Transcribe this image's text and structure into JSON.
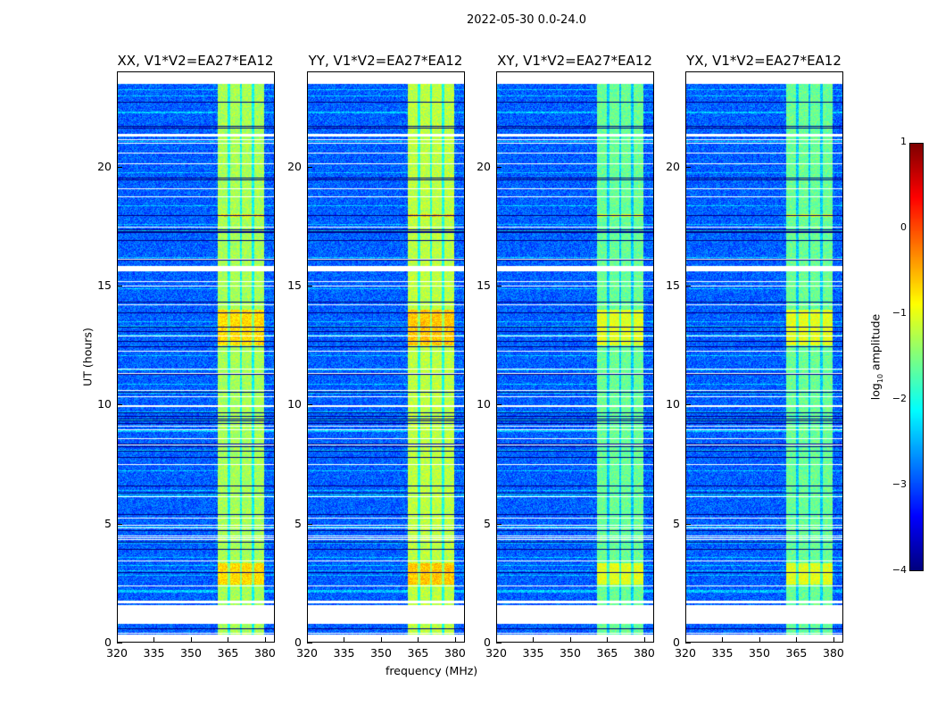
{
  "chart_data": {
    "type": "heatmap",
    "title": "2022-05-30 0.0-24.0",
    "xlabel": "frequency (MHz)",
    "ylabel": "UT (hours)",
    "xlim": [
      320,
      384
    ],
    "ylim": [
      0,
      24
    ],
    "xticks": [
      320,
      335,
      350,
      365,
      380
    ],
    "yticks": [
      0,
      5,
      10,
      15,
      20
    ],
    "panels": [
      {
        "title": "XX, V1*V2=EA27*EA12",
        "band_level": -1.3
      },
      {
        "title": "YY, V1*V2=EA27*EA12",
        "band_level": -1.2
      },
      {
        "title": "XY, V1*V2=EA27*EA12",
        "band_level": -1.6
      },
      {
        "title": "YX, V1*V2=EA27*EA12",
        "band_level": -1.6
      }
    ],
    "background_level": -2.9,
    "signal_band_mhz": [
      361,
      380
    ],
    "channel_gaps_mhz": [
      365.5,
      370.5,
      375.5
    ],
    "strong_rfi_ut": [
      [
        2.4,
        3.3
      ],
      [
        12.5,
        14.0
      ],
      [
        17.9,
        18.0
      ]
    ],
    "flagged_ut": [
      [
        0.0,
        0.3
      ],
      [
        0.75,
        1.55
      ],
      [
        1.62,
        1.72
      ],
      [
        15.6,
        15.85
      ],
      [
        21.3,
        21.4
      ],
      [
        23.5,
        24.0
      ]
    ],
    "colorbar": {
      "label": "log10 amplitude",
      "label_main": "log",
      "label_sub": "10",
      "label_rest": " amplitude",
      "range": [
        -4,
        1
      ],
      "ticks": [
        "−4",
        "−3",
        "−2",
        "−1",
        "0",
        "1"
      ],
      "colormap": "jet"
    }
  }
}
